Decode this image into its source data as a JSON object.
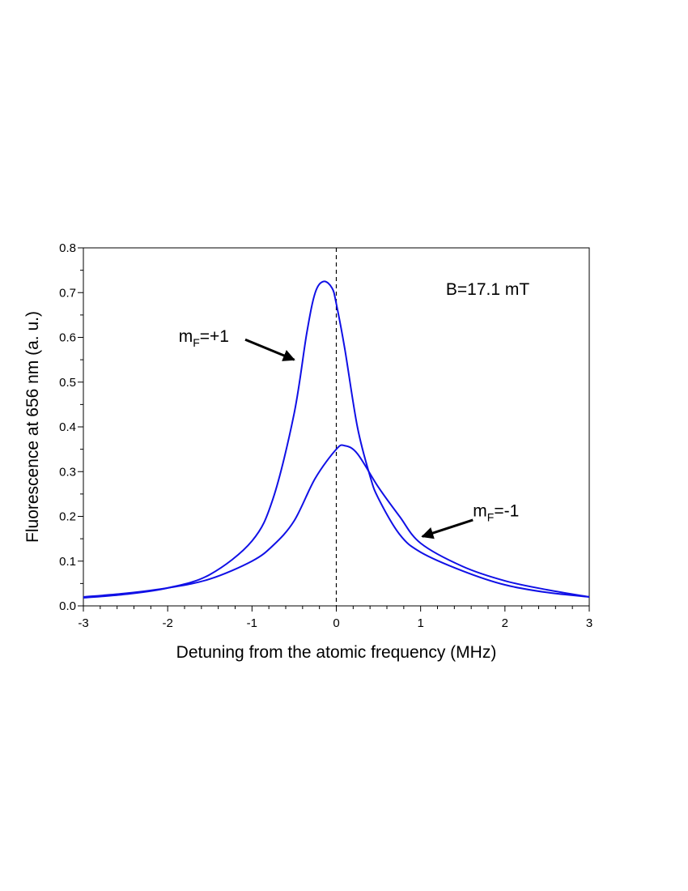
{
  "chart_data": {
    "type": "line",
    "xlabel": "Detuning from the atomic frequency (MHz)",
    "ylabel": "Fluorescence at 656 nm (a. u.)",
    "xlim": [
      -3,
      3
    ],
    "ylim": [
      0,
      0.8
    ],
    "x_ticks": [
      "-3",
      "-2",
      "-1",
      "0",
      "1",
      "2",
      "3"
    ],
    "y_ticks": [
      "0.0",
      "0.1",
      "0.2",
      "0.3",
      "0.4",
      "0.5",
      "0.6",
      "0.7",
      "0.8"
    ],
    "grid": false,
    "reference_line": {
      "x": 0,
      "style": "dashed"
    },
    "series": [
      {
        "x": [
          -3,
          -2.5,
          -2,
          -1.5,
          -1,
          -0.75,
          -0.5,
          -0.35,
          -0.25,
          -0.15,
          -0.05,
          0,
          0.1,
          0.25,
          0.4,
          0.5,
          0.75,
          1,
          1.5,
          2,
          2.5,
          3
        ],
        "y": [
          0.018,
          0.026,
          0.04,
          0.07,
          0.145,
          0.24,
          0.43,
          0.61,
          0.7,
          0.725,
          0.71,
          0.675,
          0.575,
          0.4,
          0.29,
          0.24,
          0.16,
          0.12,
          0.078,
          0.047,
          0.03,
          0.02
        ]
      },
      {
        "x": [
          -3,
          -2.5,
          -2,
          -1.5,
          -1,
          -0.75,
          -0.5,
          -0.25,
          0,
          0.1,
          0.25,
          0.5,
          0.75,
          1,
          1.5,
          2,
          2.5,
          3
        ],
        "y": [
          0.02,
          0.028,
          0.04,
          0.06,
          0.1,
          0.135,
          0.19,
          0.285,
          0.35,
          0.358,
          0.34,
          0.265,
          0.2,
          0.14,
          0.088,
          0.056,
          0.036,
          0.02
        ]
      }
    ],
    "color": "#1010e6",
    "annotations": [
      {
        "text": "B=17.1 mT",
        "x": 1.3,
        "y": 0.695
      },
      {
        "base": "m",
        "sub": "F",
        "rest": "=+1",
        "x": -1.87,
        "y": 0.59,
        "arrow_from": [
          -1.08,
          0.595
        ],
        "arrow_to": [
          -0.5,
          0.55
        ]
      },
      {
        "base": "m",
        "sub": "F",
        "rest": "=-1",
        "x": 1.62,
        "y": 0.2,
        "arrow_from": [
          1.62,
          0.192
        ],
        "arrow_to": [
          1.02,
          0.155
        ]
      }
    ]
  }
}
